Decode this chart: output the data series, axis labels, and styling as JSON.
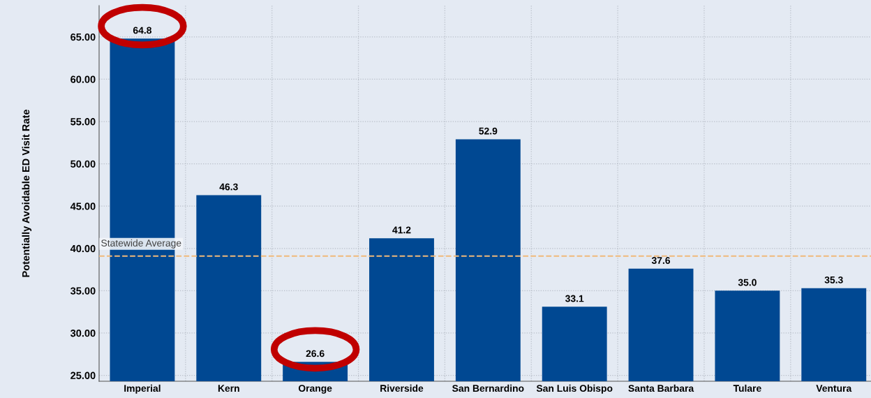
{
  "chart_data": {
    "type": "bar",
    "ylabel": "Potentially Avoidable ED Visit Rate",
    "categories": [
      "Imperial",
      "Kern",
      "Orange",
      "Riverside",
      "San Bernardino",
      "San Luis Obispo",
      "Santa Barbara",
      "Tulare",
      "Ventura"
    ],
    "values": [
      64.8,
      46.3,
      26.6,
      41.2,
      52.9,
      33.1,
      37.6,
      35.0,
      35.3
    ],
    "value_labels": [
      "64.8",
      "46.3",
      "26.6",
      "41.2",
      "52.9",
      "33.1",
      "37.6",
      "35.0",
      "35.3"
    ],
    "color": "#004892",
    "ylim": [
      24.3,
      68.7
    ],
    "yticks": [
      {
        "value": 25,
        "label": "25.00"
      },
      {
        "value": 30,
        "label": "30.00"
      },
      {
        "value": 35,
        "label": "35.00"
      },
      {
        "value": 40,
        "label": "40.00"
      },
      {
        "value": 45,
        "label": "45.00"
      },
      {
        "value": 50,
        "label": "50.00"
      },
      {
        "value": 55,
        "label": "55.00"
      },
      {
        "value": 60,
        "label": "60.00"
      },
      {
        "value": 65,
        "label": "65.00"
      }
    ],
    "ref_lines": [
      {
        "axis": "y",
        "value": 39.1,
        "label": "Statewide Average",
        "color": "#f0b97a",
        "line_style": "dashed"
      }
    ],
    "grid": true,
    "legend": false
  }
}
